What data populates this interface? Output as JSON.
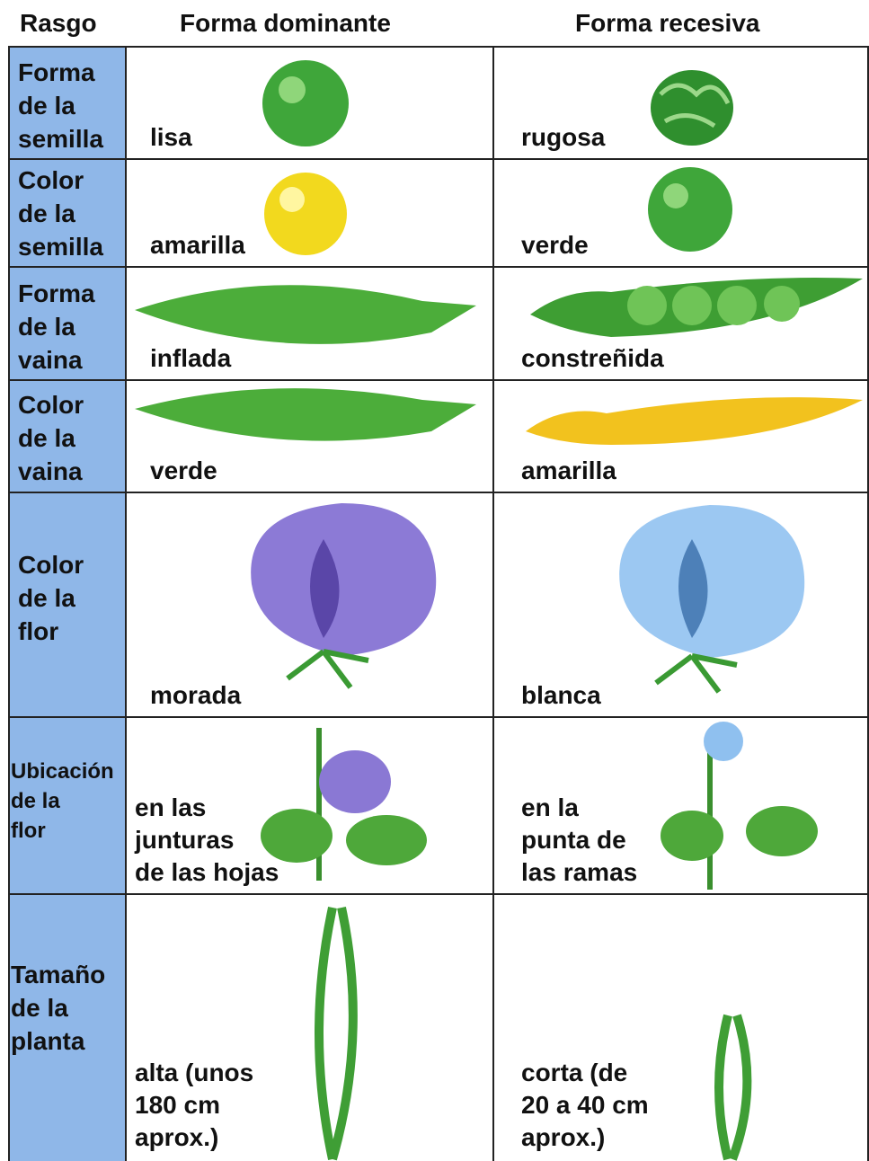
{
  "table": {
    "header": [
      "Rasgo",
      "Forma dominante",
      "Forma recesiva"
    ],
    "rows": [
      [
        "Forma\nde la\nsemilla",
        "lisa",
        "rugosa"
      ],
      [
        "Color\nde la\nsemilla",
        "amarilla",
        "verde"
      ],
      [
        "Forma\nde la\nvaina",
        "inflada",
        "constreñida"
      ],
      [
        "Color\nde la\nvaina",
        "verde",
        "amarilla"
      ],
      [
        "Color\nde la\nflor",
        "morada",
        "blanca"
      ],
      [
        "Ubicación\nde la\nflor",
        "en las\njunturas\nde las hojas",
        "en la\npunta de\nlas ramas"
      ],
      [
        "Tamaño\nde la\nplanta",
        "alta (unos\n180 cm\naprox.)",
        "corta (de\n20 a 40 cm\naprox.)"
      ]
    ]
  }
}
